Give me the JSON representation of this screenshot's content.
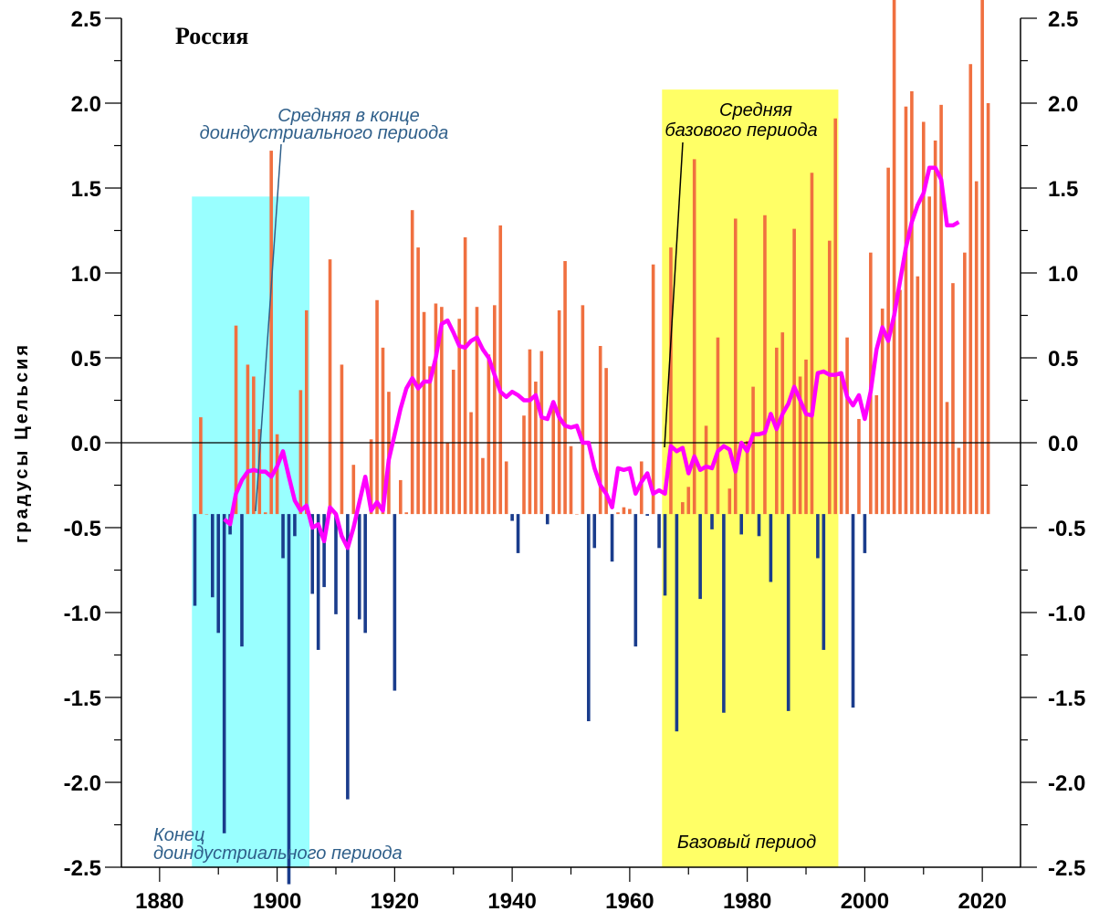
{
  "chart_data": {
    "type": "bar",
    "title": "Россия",
    "ylabel": "градусы Цельсия",
    "xlabel": "",
    "xlim": [
      1875,
      2025
    ],
    "ylim": [
      -2.5,
      2.5
    ],
    "x_ticks": [
      "1880",
      "1900",
      "1920",
      "1940",
      "1960",
      "1980",
      "2000",
      "2020"
    ],
    "y_ticks": [
      "2.5",
      "2.0",
      "1.5",
      "1.0",
      "0.5",
      "0.0",
      "-0.5",
      "-1.0",
      "-1.5",
      "-2.0",
      "-2.5"
    ],
    "bar_baseline": -0.42,
    "colors": {
      "positive": "#f07040",
      "negative": "#1a3c8c",
      "smooth_line": "#ff00ff",
      "preindustrial_shade": "#99ffff",
      "base_shade": "#ffff66"
    },
    "shaded_periods": [
      {
        "name": "preindustrial",
        "x0": 1885.5,
        "x1": 1905.5,
        "y_top": 1.45,
        "label": "Конец доиндустриального периода",
        "mean_label": "Средняя в конце доиндустриального периода"
      },
      {
        "name": "base",
        "x0": 1965.5,
        "x1": 1995.5,
        "y_top": 2.08,
        "label": "Базовый период",
        "mean_label": "Средняя базового периода"
      }
    ],
    "annotations": {
      "pre_mean": [
        "Средняя в конце",
        "доиндустриального периода"
      ],
      "pre_period": [
        "Конец",
        "доиндустриального периода"
      ],
      "base_mean": [
        "Средняя",
        "базового периода"
      ],
      "base_period": "Базовый период"
    },
    "years": [
      1886,
      1887,
      1888,
      1889,
      1890,
      1891,
      1892,
      1893,
      1894,
      1895,
      1896,
      1897,
      1898,
      1899,
      1900,
      1901,
      1902,
      1903,
      1904,
      1905,
      1906,
      1907,
      1908,
      1909,
      1910,
      1911,
      1912,
      1913,
      1914,
      1915,
      1916,
      1917,
      1918,
      1919,
      1920,
      1921,
      1922,
      1923,
      1924,
      1925,
      1926,
      1927,
      1928,
      1929,
      1930,
      1931,
      1932,
      1933,
      1934,
      1935,
      1936,
      1937,
      1938,
      1939,
      1940,
      1941,
      1942,
      1943,
      1944,
      1945,
      1946,
      1947,
      1948,
      1949,
      1950,
      1951,
      1952,
      1953,
      1954,
      1955,
      1956,
      1957,
      1958,
      1959,
      1960,
      1961,
      1962,
      1963,
      1964,
      1965,
      1966,
      1967,
      1968,
      1969,
      1970,
      1971,
      1972,
      1973,
      1974,
      1975,
      1976,
      1977,
      1978,
      1979,
      1980,
      1981,
      1982,
      1983,
      1984,
      1985,
      1986,
      1987,
      1988,
      1989,
      1990,
      1991,
      1992,
      1993,
      1994,
      1995,
      1996,
      1997,
      1998,
      1999,
      2000,
      2001,
      2002,
      2003,
      2004,
      2005,
      2006,
      2007,
      2008,
      2009,
      2010,
      2011,
      2012,
      2013,
      2014,
      2015,
      2016,
      2017,
      2018,
      2019,
      2020,
      2021
    ],
    "values": [
      -0.96,
      0.15,
      -0.42,
      -0.91,
      -1.12,
      -2.3,
      -0.54,
      0.69,
      -1.2,
      0.46,
      0.39,
      0.08,
      -0.41,
      1.72,
      0.05,
      -0.68,
      -2.6,
      -0.55,
      0.31,
      0.78,
      -0.89,
      -1.22,
      -0.85,
      1.08,
      -1.01,
      0.46,
      -2.1,
      -0.13,
      -1.04,
      -1.12,
      0.02,
      0.84,
      0.56,
      0.3,
      -1.46,
      -0.22,
      -0.41,
      1.37,
      1.15,
      0.77,
      0.45,
      0.82,
      0.8,
      0.0,
      0.43,
      0.73,
      1.21,
      0.18,
      0.8,
      -0.09,
      0.52,
      0.81,
      1.28,
      -0.11,
      -0.46,
      -0.65,
      0.16,
      0.55,
      0.36,
      0.54,
      -0.48,
      0.22,
      0.78,
      1.07,
      -0.02,
      -0.42,
      0.81,
      -1.64,
      -0.62,
      0.57,
      0.44,
      -0.7,
      -0.41,
      -0.38,
      -0.39,
      -1.2,
      -0.11,
      -0.43,
      1.05,
      -0.62,
      -0.9,
      1.15,
      -1.7,
      -0.35,
      -0.26,
      1.67,
      -0.92,
      0.1,
      -0.51,
      0.62,
      -1.59,
      -0.27,
      1.32,
      -0.54,
      0.01,
      0.33,
      -0.55,
      1.34,
      -0.82,
      0.56,
      0.65,
      -1.58,
      1.26,
      0.39,
      0.49,
      1.59,
      -0.68,
      -1.22,
      1.19,
      1.91,
      0.4,
      0.62,
      -1.56,
      0.14,
      -0.65,
      1.12,
      0.28,
      0.79,
      1.62,
      2.68,
      0.9,
      1.98,
      2.07,
      0.98,
      1.89,
      1.45,
      1.78,
      1.99,
      0.24,
      0.94,
      -0.03,
      1.12,
      2.23,
      1.54,
      2.65,
      2.0
    ],
    "smooth_years": [
      1891,
      1892,
      1893,
      1894,
      1895,
      1896,
      1897,
      1898,
      1899,
      1900,
      1901,
      1902,
      1903,
      1904,
      1905,
      1906,
      1907,
      1908,
      1909,
      1910,
      1911,
      1912,
      1913,
      1914,
      1915,
      1916,
      1917,
      1918,
      1919,
      1920,
      1921,
      1922,
      1923,
      1924,
      1925,
      1926,
      1927,
      1928,
      1929,
      1930,
      1931,
      1932,
      1933,
      1934,
      1935,
      1936,
      1937,
      1938,
      1939,
      1940,
      1941,
      1942,
      1943,
      1944,
      1945,
      1946,
      1947,
      1948,
      1949,
      1950,
      1951,
      1952,
      1953,
      1954,
      1955,
      1956,
      1957,
      1958,
      1959,
      1960,
      1961,
      1962,
      1963,
      1964,
      1965,
      1966,
      1967,
      1968,
      1969,
      1970,
      1971,
      1972,
      1973,
      1974,
      1975,
      1976,
      1977,
      1978,
      1979,
      1980,
      1981,
      1982,
      1983,
      1984,
      1985,
      1986,
      1987,
      1988,
      1989,
      1990,
      1991,
      1992,
      1993,
      1994,
      1995,
      1996,
      1997,
      1998,
      1999,
      2000,
      2001,
      2002,
      2003,
      2004,
      2005,
      2006,
      2007,
      2008,
      2009,
      2010,
      2011,
      2012,
      2013,
      2014,
      2015,
      2016
    ],
    "smooth_values": [
      -0.45,
      -0.48,
      -0.3,
      -0.22,
      -0.17,
      -0.16,
      -0.17,
      -0.17,
      -0.2,
      -0.14,
      -0.05,
      -0.2,
      -0.34,
      -0.4,
      -0.37,
      -0.5,
      -0.48,
      -0.58,
      -0.38,
      -0.42,
      -0.55,
      -0.62,
      -0.5,
      -0.35,
      -0.2,
      -0.4,
      -0.35,
      -0.4,
      -0.1,
      0.05,
      0.2,
      0.32,
      0.38,
      0.32,
      0.36,
      0.36,
      0.5,
      0.7,
      0.72,
      0.65,
      0.57,
      0.56,
      0.6,
      0.62,
      0.55,
      0.5,
      0.4,
      0.3,
      0.27,
      0.3,
      0.28,
      0.25,
      0.25,
      0.28,
      0.15,
      0.14,
      0.24,
      0.15,
      0.1,
      0.09,
      0.1,
      0.0,
      0.0,
      -0.15,
      -0.25,
      -0.3,
      -0.38,
      -0.15,
      -0.16,
      -0.15,
      -0.3,
      -0.23,
      -0.18,
      -0.3,
      -0.28,
      -0.3,
      -0.02,
      -0.05,
      -0.03,
      -0.18,
      -0.08,
      -0.16,
      -0.14,
      -0.15,
      -0.05,
      -0.02,
      -0.04,
      -0.17,
      0.0,
      -0.05,
      0.05,
      0.05,
      0.06,
      0.17,
      0.08,
      0.17,
      0.23,
      0.33,
      0.25,
      0.17,
      0.16,
      0.41,
      0.42,
      0.4,
      0.4,
      0.41,
      0.27,
      0.22,
      0.28,
      0.14,
      0.3,
      0.55,
      0.68,
      0.6,
      0.75,
      0.95,
      1.15,
      1.3,
      1.4,
      1.47,
      1.62,
      1.62,
      1.55,
      1.28,
      1.28,
      1.3,
      1.28,
      1.45,
      1.48
    ]
  }
}
